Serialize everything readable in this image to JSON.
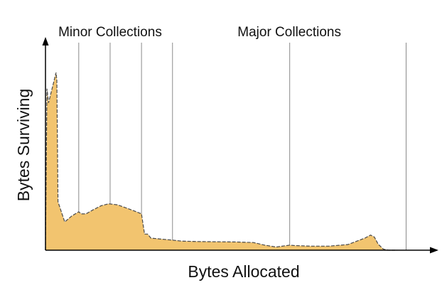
{
  "chart_data": {
    "type": "area",
    "title": "",
    "xlabel": "Bytes Allocated",
    "ylabel": "Bytes Surviving",
    "xlim": [
      0,
      100
    ],
    "ylim": [
      0,
      100
    ],
    "grid": false,
    "colors": {
      "fill": "#f2c46f",
      "outline": "#4a4a4a",
      "collection_line": "#8a8a8a",
      "axis": "#000000"
    },
    "collection_groups": [
      {
        "label": "Minor Collections",
        "x": [
          8.8,
          17.1,
          25.4
        ],
        "line_style": "thin"
      },
      {
        "label": "Major Collections",
        "x": [
          33.6,
          64.6,
          95.4
        ],
        "line_style": "medium"
      }
    ],
    "series": [
      {
        "x": [
          0,
          0.4,
          0.8,
          2.8,
          3.0,
          3.3,
          5.1,
          7.0,
          8.8,
          9.5,
          10.7,
          12.6,
          14.7,
          16.7,
          19.0,
          21.3,
          23.4,
          25.4,
          26.2,
          27.0,
          27.9,
          30.7,
          33.6,
          36.0,
          40.0,
          45.0,
          50.0,
          55.0,
          58.0,
          61.0,
          64.6,
          66.0,
          70.0,
          75.0,
          80.0,
          84.5,
          86.0,
          87.0,
          88.0,
          89.4,
          90.8,
          93.0
        ],
        "y": [
          0,
          80,
          73,
          88,
          84,
          24,
          14,
          17,
          19,
          18,
          18,
          20,
          22,
          23,
          22.5,
          21,
          19.5,
          18,
          8,
          8,
          6,
          5.5,
          5,
          4.5,
          4.3,
          4.2,
          4.1,
          3.8,
          2.5,
          1.6,
          2.5,
          2.3,
          2.0,
          2.0,
          2.8,
          6,
          7.5,
          6.5,
          3,
          0.5,
          0,
          0
        ]
      }
    ]
  }
}
